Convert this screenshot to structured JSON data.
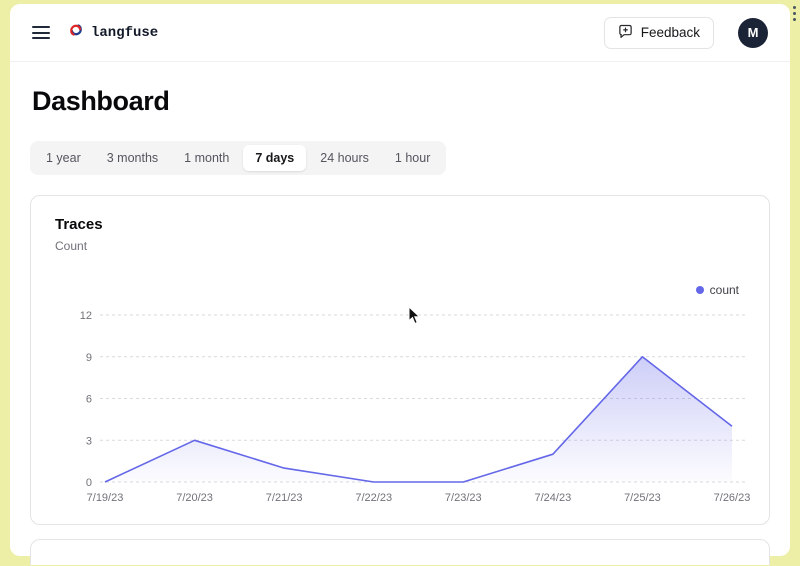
{
  "frame": {
    "menu_icon": "⋮"
  },
  "header": {
    "brand": "langfuse",
    "icons": {
      "hamburger": "≡",
      "brand_logo": "knot-icon",
      "feedback": "speech-bubble-plus-icon"
    },
    "feedback": {
      "label": "Feedback"
    },
    "avatar": {
      "initial": "M"
    }
  },
  "page": {
    "title": "Dashboard"
  },
  "time_tabs": {
    "items": [
      {
        "label": "1 year",
        "active": false
      },
      {
        "label": "3 months",
        "active": false
      },
      {
        "label": "1 month",
        "active": false
      },
      {
        "label": "7 days",
        "active": true
      },
      {
        "label": "24 hours",
        "active": false
      },
      {
        "label": "1 hour",
        "active": false
      }
    ]
  },
  "traces_card": {
    "title": "Traces",
    "subtitle": "Count"
  },
  "chart_data": {
    "type": "area",
    "title": "Traces",
    "ylabel": "Count",
    "x": [
      "7/19/23",
      "7/20/23",
      "7/21/23",
      "7/22/23",
      "7/23/23",
      "7/24/23",
      "7/25/23",
      "7/26/23"
    ],
    "series": [
      {
        "name": "count",
        "values": [
          0,
          3,
          1,
          0,
          0,
          2,
          9,
          4
        ],
        "color": "#6467e8"
      }
    ],
    "ylim": [
      0,
      12
    ],
    "yticks": [
      0,
      3,
      6,
      9,
      12
    ],
    "grid": true,
    "grid_style": "dashed",
    "legend_position": "top-right"
  },
  "colors": {
    "accent": "#6467e8",
    "avatar_bg": "#1b2437",
    "frame_bg": "#edefa6",
    "grid_line": "#d9d9de"
  }
}
